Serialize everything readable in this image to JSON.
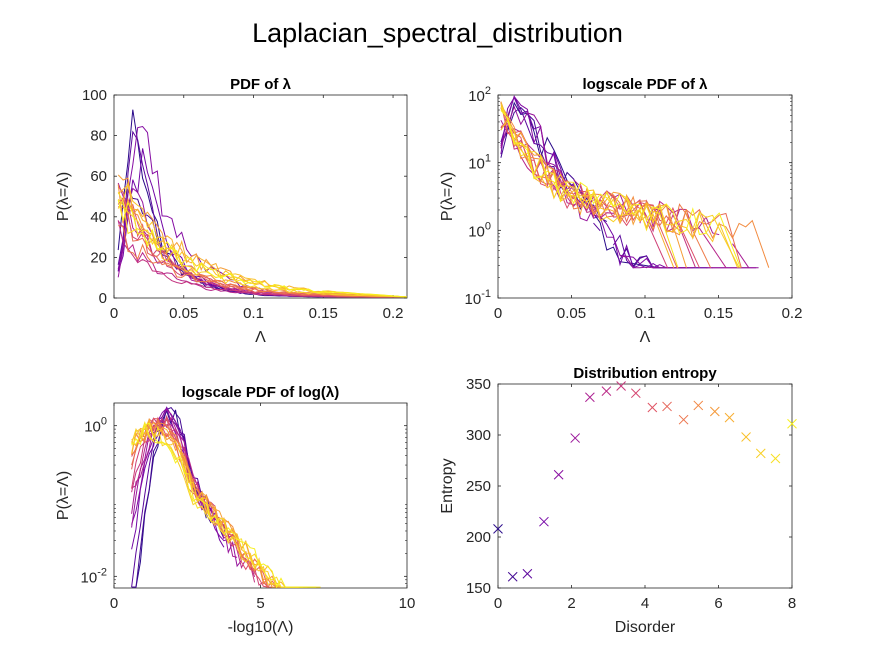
{
  "figure_title": "Laplacian_spectral_distribution",
  "colors": {
    "series_gradient": [
      "#2a0a8a",
      "#7a06a8",
      "#b2228f",
      "#dc4c6a",
      "#f07f44",
      "#f9bd2a",
      "#f7f01e"
    ],
    "axis": "#262626"
  },
  "chart_data": [
    {
      "type": "line",
      "title": "PDF of λ",
      "xlabel": "Λ",
      "ylabel": "P(λ=Λ)",
      "xlim": [
        0,
        0.21
      ],
      "ylim": [
        0,
        100
      ],
      "yscale": "linear",
      "xticks": [
        0,
        0.05,
        0.1,
        0.15,
        0.2
      ],
      "xticklabels": [
        "0",
        "0.05",
        "0.1",
        "0.15",
        "0.2"
      ],
      "yticks": [
        0,
        20,
        40,
        60,
        80,
        100
      ],
      "yticklabels": [
        "0",
        "20",
        "40",
        "60",
        "80",
        "100"
      ],
      "series_count": 21,
      "color_order": "purple to yellow with increasing disorder",
      "note": "overlaid PDF curves, one per disorder level"
    },
    {
      "type": "line",
      "title": "logscale PDF of λ",
      "xlabel": "Λ",
      "ylabel": "P(λ=Λ)",
      "xlim": [
        0,
        0.2
      ],
      "ylim": [
        0.1,
        100
      ],
      "yscale": "log",
      "xticks": [
        0,
        0.05,
        0.1,
        0.15,
        0.2
      ],
      "xticklabels": [
        "0",
        "0.05",
        "0.1",
        "0.15",
        "0.2"
      ],
      "yticks": [
        0.1,
        1,
        10,
        100
      ],
      "yticklabels": [
        [
          "10",
          "-1"
        ],
        [
          "10",
          "0"
        ],
        [
          "10",
          "1"
        ],
        [
          "10",
          "2"
        ]
      ],
      "series_count": 21,
      "color_order": "purple to yellow with increasing disorder"
    },
    {
      "type": "line",
      "title": "logscale PDF of log(λ)",
      "xlabel": "-log10(Λ)",
      "ylabel": "P(λ=Λ)",
      "xlim": [
        0,
        10
      ],
      "ylim": [
        0.007,
        2
      ],
      "yscale": "log",
      "xticks": [
        0,
        5,
        10
      ],
      "xticklabels": [
        "0",
        "5",
        "10"
      ],
      "yticks": [
        0.01,
        1
      ],
      "yticklabels": [
        [
          "10",
          "-2"
        ],
        [
          "10",
          "0"
        ]
      ],
      "series_count": 21,
      "color_order": "purple to yellow with increasing disorder"
    },
    {
      "type": "scatter",
      "marker": "x",
      "title": "Distribution entropy",
      "xlabel": "Disorder",
      "ylabel": "Entropy",
      "xlim": [
        0,
        8
      ],
      "ylim": [
        150,
        350
      ],
      "xticks": [
        0,
        2,
        4,
        6,
        8
      ],
      "xticklabels": [
        "0",
        "2",
        "4",
        "6",
        "8"
      ],
      "yticks": [
        150,
        200,
        250,
        300,
        350
      ],
      "yticklabels": [
        "150",
        "200",
        "250",
        "300",
        "350"
      ],
      "x": [
        0,
        0.4,
        0.8,
        1.25,
        1.65,
        2.1,
        2.5,
        2.95,
        3.35,
        3.75,
        4.2,
        4.6,
        5.05,
        5.45,
        5.9,
        6.3,
        6.75,
        7.15,
        7.55,
        8.0
      ],
      "y": [
        208,
        161,
        164,
        215,
        261,
        297,
        337,
        343,
        348,
        341,
        327,
        328,
        315,
        329,
        323,
        317,
        298,
        282,
        277,
        311
      ]
    }
  ]
}
